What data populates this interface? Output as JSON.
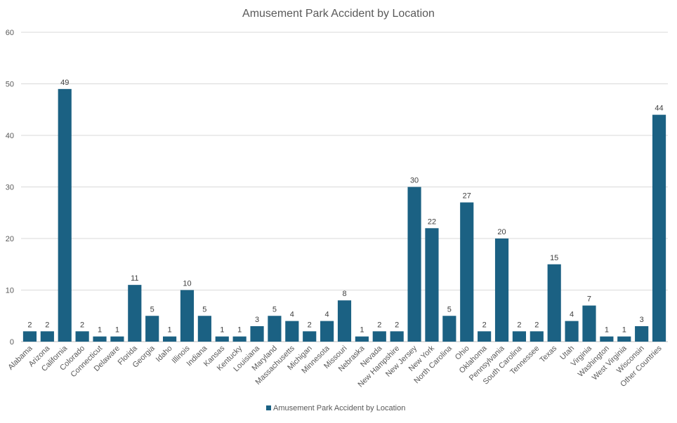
{
  "chart_data": {
    "type": "bar",
    "title": "Amusement Park Accident by Location",
    "xlabel": "",
    "ylabel": "",
    "ylim": [
      0,
      60
    ],
    "yticks": [
      0,
      10,
      20,
      30,
      40,
      50,
      60
    ],
    "grid": true,
    "legend_position": "bottom",
    "bar_color": "#1b6183",
    "categories": [
      "Alabama",
      "Arizona",
      "California",
      "Colorado",
      "Connecticut",
      "Delaware",
      "Florida",
      "Georgia",
      "Idaho",
      "Illinois",
      "Indiana",
      "Kansas",
      "Kentucky",
      "Louisiana",
      "Maryland",
      "Massachusetts",
      "Michigan",
      "Minnesota",
      "Missouri",
      "Nebraska",
      "Nevada",
      "New Hampshire",
      "New Jersey",
      "New York",
      "North Carolina",
      "Ohio",
      "Oklahoma",
      "Pennsylvania",
      "South Carolina",
      "Tennessee",
      "Texas",
      "Utah",
      "Virginia",
      "Washington",
      "West Virginia",
      "Wisconsin",
      "Other Countries"
    ],
    "series": [
      {
        "name": "Amusement Park Accident by Location",
        "values": [
          2,
          2,
          49,
          2,
          1,
          1,
          11,
          5,
          1,
          10,
          5,
          1,
          1,
          3,
          5,
          4,
          2,
          4,
          8,
          1,
          2,
          2,
          30,
          22,
          5,
          27,
          2,
          20,
          2,
          2,
          15,
          4,
          7,
          1,
          1,
          3,
          44
        ]
      }
    ]
  }
}
